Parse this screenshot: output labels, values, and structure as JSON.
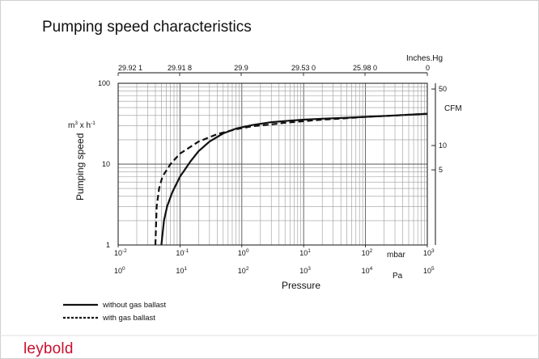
{
  "page": {
    "title": "Pumping speed characteristics",
    "logo": "leybold",
    "accent": "#c8102e"
  },
  "chart_data": {
    "type": "line",
    "title": "Pumping speed characteristics",
    "scale": {
      "x": "log",
      "y": "log"
    },
    "grid": true,
    "x_bottom": {
      "label": "Pressure",
      "unit": "mbar",
      "range": [
        0.01,
        1000
      ],
      "ticks": [
        {
          "base": "10",
          "exp": "-2"
        },
        {
          "base": "10",
          "exp": "-1"
        },
        {
          "base": "10",
          "exp": "0"
        },
        {
          "base": "10",
          "exp": "1"
        },
        {
          "base": "10",
          "exp": "2"
        },
        {
          "base": "10",
          "exp": "3"
        }
      ]
    },
    "x_bottom_pa": {
      "unit": "Pa",
      "range": [
        1,
        100000
      ],
      "ticks": [
        {
          "base": "10",
          "exp": "0"
        },
        {
          "base": "10",
          "exp": "1"
        },
        {
          "base": "10",
          "exp": "2"
        },
        {
          "base": "10",
          "exp": "3"
        },
        {
          "base": "10",
          "exp": "4"
        },
        {
          "base": "10",
          "exp": "5"
        }
      ]
    },
    "x_top": {
      "unit": "Inches.Hg",
      "ticks": [
        "29.92 1",
        "29.91 8",
        "29.9",
        "29.53 0",
        "25.98 0",
        "0"
      ]
    },
    "y_left": {
      "label": "Pumping speed",
      "unit_base": "m",
      "unit_exp": "3",
      "unit_mid": " x h",
      "unit_exp2": "-1",
      "range": [
        1,
        100
      ],
      "ticks": [
        "1",
        "10",
        "100"
      ]
    },
    "y_right": {
      "unit": "CFM",
      "ticks": [
        {
          "label": "5",
          "value": 5
        },
        {
          "label": "10",
          "value": 10
        },
        {
          "label": "50",
          "value": 50
        }
      ]
    },
    "series": [
      {
        "name": "without gas ballast",
        "style": "solid",
        "points": [
          [
            0.05,
            1
          ],
          [
            0.055,
            2
          ],
          [
            0.062,
            3
          ],
          [
            0.075,
            4.5
          ],
          [
            0.1,
            7
          ],
          [
            0.15,
            11
          ],
          [
            0.2,
            14.5
          ],
          [
            0.3,
            19
          ],
          [
            0.5,
            24
          ],
          [
            0.8,
            27.5
          ],
          [
            1.5,
            30.5
          ],
          [
            3,
            33
          ],
          [
            6,
            34.5
          ],
          [
            10,
            35.5
          ],
          [
            20,
            36.5
          ],
          [
            50,
            37.5
          ],
          [
            100,
            38.5
          ],
          [
            300,
            40
          ],
          [
            1000,
            42
          ]
        ]
      },
      {
        "name": "with gas ballast",
        "style": "dashed",
        "points": [
          [
            0.04,
            1
          ],
          [
            0.042,
            3
          ],
          [
            0.046,
            5
          ],
          [
            0.052,
            7
          ],
          [
            0.07,
            10
          ],
          [
            0.1,
            13.5
          ],
          [
            0.2,
            19
          ],
          [
            0.4,
            23.5
          ],
          [
            0.8,
            27
          ],
          [
            1.5,
            29.5
          ],
          [
            3,
            31
          ],
          [
            5,
            32.5
          ],
          [
            10,
            34
          ],
          [
            20,
            35.5
          ],
          [
            50,
            37
          ],
          [
            100,
            38.5
          ],
          [
            300,
            40
          ],
          [
            1000,
            42
          ]
        ]
      }
    ]
  }
}
